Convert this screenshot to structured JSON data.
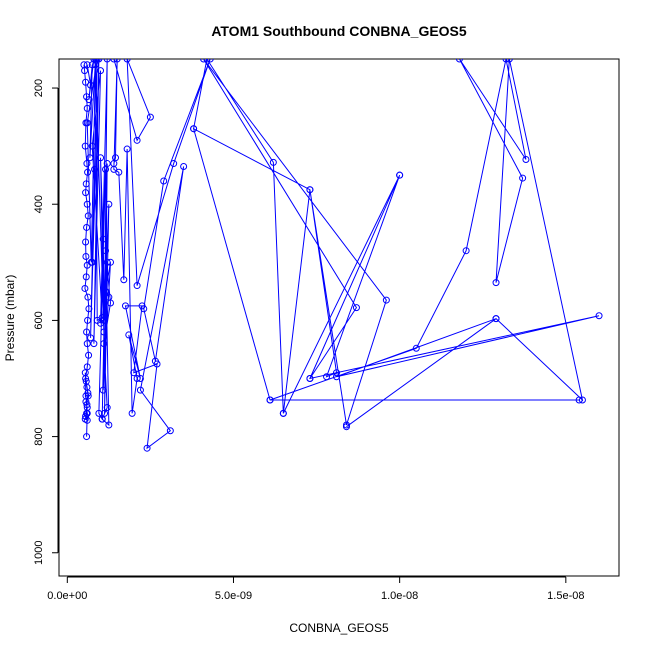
{
  "chart_data": {
    "type": "line",
    "title": "ATOM1 Southbound CONBNA_GEOS5",
    "xlabel": "CONBNA_GEOS5",
    "ylabel": "Pressure (mbar)",
    "xlim": [
      -2.5e-10,
      1.66e-08
    ],
    "ylim": [
      1040,
      150
    ],
    "y_inverted": true,
    "x_ticks": [
      {
        "value": 0,
        "label": "0.0e+00"
      },
      {
        "value": 5e-09,
        "label": "5.0e-09"
      },
      {
        "value": 1e-08,
        "label": "1.0e-08"
      },
      {
        "value": 1.5e-08,
        "label": "1.5e-08"
      }
    ],
    "y_ticks": [
      {
        "value": 200,
        "label": "200"
      },
      {
        "value": 400,
        "label": "400"
      },
      {
        "value": 600,
        "label": "600"
      },
      {
        "value": 800,
        "label": "800"
      },
      {
        "value": 1000,
        "label": "1000"
      }
    ],
    "grid": false,
    "legend": "none",
    "series_color": "#0000ff",
    "series": [
      {
        "x": [
          5e-10,
          5.2e-10,
          5.5e-10,
          5.8e-10,
          6e-10,
          5.6e-10,
          5.4e-10,
          5.9e-10,
          6.1e-10,
          5.7e-10,
          5.5e-10,
          6e-10,
          6.3e-10,
          5.8e-10,
          5.5e-10,
          5.6e-10,
          6e-10,
          5.7e-10,
          5.3e-10,
          6.2e-10,
          6.5e-10,
          6.1e-10,
          5.8e-10,
          6e-10,
          6.4e-10,
          6e-10,
          5.5e-10,
          5.9e-10,
          6.3e-10,
          5.6e-10,
          6e-10,
          5.8e-10,
          5.4e-10,
          6e-10,
          5.5e-10,
          5.9e-10,
          6.2e-10,
          5.7e-10,
          5.4e-10,
          5.6e-10,
          6e-10,
          5.8e-10
        ],
        "y": [
          160,
          170,
          190,
          215,
          235,
          260,
          300,
          330,
          345,
          365,
          380,
          400,
          420,
          440,
          465,
          490,
          505,
          525,
          545,
          560,
          580,
          600,
          620,
          640,
          660,
          680,
          700,
          715,
          730,
          740,
          750,
          760,
          770,
          772,
          765,
          745,
          725,
          705,
          690,
          730,
          760,
          800
        ]
      },
      {
        "x": [
          6e-10,
          7e-10,
          8e-10,
          6.5e-10,
          7.5e-10,
          6.8e-10,
          8.5e-10,
          7.2e-10,
          6e-10,
          9e-10,
          7.5e-10,
          8.2e-10,
          7e-10,
          9.5e-10,
          8e-10,
          1e-09,
          7.5e-10,
          1.05e-09,
          9e-10,
          8.5e-10,
          1.1e-09,
          1e-09,
          1.08e-09,
          1.12e-09,
          1.2e-09,
          1e-09,
          1.15e-09,
          9.5e-10,
          1.05e-09,
          1.2e-09,
          1.1e-09,
          1.3e-09,
          1.15e-09,
          1.25e-09,
          1.05e-09,
          1.2e-09,
          1.12e-09,
          1.25e-09,
          1.1e-09,
          1.2e-09,
          1.08e-09,
          1.3e-09,
          1.15e-09,
          1.25e-09
        ],
        "y": [
          160,
          195,
          150,
          220,
          160,
          320,
          150,
          500,
          260,
          150,
          500,
          340,
          630,
          150,
          640,
          170,
          300,
          595,
          600,
          160,
          620,
          320,
          460,
          600,
          150,
          605,
          340,
          760,
          770,
          750,
          640,
          570,
          480,
          780,
          770,
          330,
          760,
          400,
          600,
          500,
          720,
          500,
          550,
          560
        ]
      },
      {
        "x": [
          1.4e-09,
          1.45e-09,
          1.5e-09,
          1.4e-09,
          1.55e-09,
          1.7e-09,
          1.8e-09,
          1.95e-09,
          2.1e-09,
          1.85e-09,
          2.2e-09,
          1.75e-09,
          2.25e-09,
          2e-09,
          2.7e-09,
          2.4e-09,
          3.1e-09,
          2.2e-09,
          3.5e-09,
          2.65e-09,
          2.3e-09,
          2.9e-09,
          4.3e-09,
          3.2e-09,
          2.1e-09,
          1.8e-09,
          2.5e-09,
          2.1e-09,
          1.4e-09
        ],
        "y": [
          330,
          320,
          150,
          340,
          345,
          530,
          305,
          760,
          700,
          625,
          700,
          575,
          575,
          690,
          675,
          820,
          790,
          720,
          335,
          670,
          580,
          360,
          150,
          330,
          540,
          150,
          250,
          290,
          150
        ]
      },
      {
        "x": [
          3.8e-09,
          4.2e-09,
          6.2e-09,
          6.5e-09,
          7.3e-09,
          8.4e-09,
          9.6e-09,
          4.1e-09,
          8.7e-09,
          7.3e-09,
          1e-08,
          7.8e-09,
          8.1e-09,
          7.3e-09,
          3.8e-09,
          6.1e-09,
          1.54e-08,
          6.1e-09,
          1.05e-08,
          1.2e-08,
          1.32e-08,
          1.38e-08,
          1.18e-08,
          1.37e-08,
          1.29e-08,
          1.33e-08,
          1.55e-08,
          1.29e-08,
          8.4e-09,
          1.29e-08,
          8.1e-09,
          1.6e-08,
          7.3e-09,
          1e-08,
          6.5e-09
        ],
        "y": [
          270,
          150,
          328,
          760,
          375,
          780,
          565,
          150,
          578,
          700,
          350,
          697,
          690,
          375,
          270,
          737,
          737,
          737,
          648,
          480,
          150,
          323,
          150,
          355,
          535,
          150,
          737,
          597,
          783,
          597,
          697,
          592,
          700,
          350,
          760
        ]
      }
    ]
  }
}
